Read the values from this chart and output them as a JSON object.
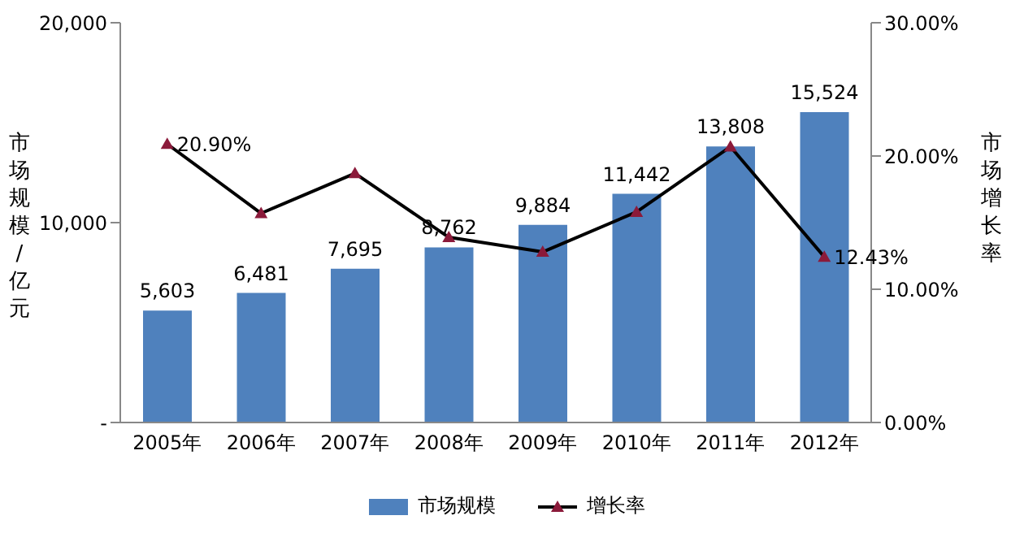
{
  "chart_data": {
    "type": "bar",
    "categories": [
      "2005年",
      "2006年",
      "2007年",
      "2008年",
      "2009年",
      "2010年",
      "2011年",
      "2012年"
    ],
    "ylabel": "市场规模/亿元",
    "y2label": "市场增长率",
    "series": [
      {
        "name": "市场规模",
        "color": "#4f81bd",
        "values": [
          5603,
          6481,
          7695,
          8762,
          9884,
          11442,
          13808,
          15524
        ],
        "value_labels": [
          "5,603",
          "6,481",
          "7,695",
          "8,762",
          "9,884",
          "11,442",
          "13,808",
          "15,524"
        ]
      },
      {
        "name": "增长率",
        "type": "line",
        "axis": "y2",
        "color": "#000000",
        "marker": "triangle",
        "values": [
          20.9,
          15.7,
          18.7,
          13.9,
          12.8,
          15.8,
          20.7,
          12.43
        ],
        "value_labels": [
          "20.90%",
          null,
          null,
          null,
          null,
          null,
          null,
          "12.43%"
        ]
      }
    ],
    "ylim": [
      0,
      20000
    ],
    "yticks": [
      {
        "value": 0,
        "label": "-"
      },
      {
        "value": 10000,
        "label": "10,000"
      },
      {
        "value": 20000,
        "label": "20,000"
      }
    ],
    "y2lim": [
      0,
      30
    ],
    "y2ticks": [
      {
        "value": 0,
        "label": "0.00%"
      },
      {
        "value": 10,
        "label": "10.00%"
      },
      {
        "value": 20,
        "label": "20.00%"
      },
      {
        "value": 30,
        "label": "30.00%"
      }
    ],
    "grid": false,
    "legend": "bottom"
  }
}
